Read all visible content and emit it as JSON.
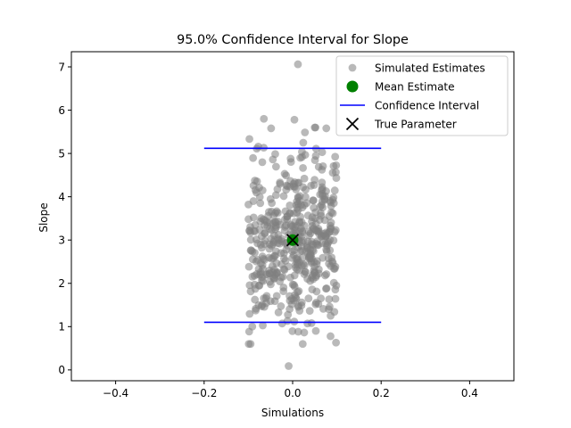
{
  "chart_data": {
    "type": "scatter",
    "title": "95.0% Confidence Interval for Slope",
    "xlabel": "Simulations",
    "ylabel": "Slope",
    "xlim": [
      -0.5,
      0.5
    ],
    "ylim": [
      -0.25,
      7.35
    ],
    "grid": false,
    "legend_position": "top-right",
    "x_ticks": [
      -0.4,
      -0.2,
      0.0,
      0.2,
      0.4
    ],
    "x_tick_labels": [
      "−0.4",
      "−0.2",
      "0.0",
      "0.2",
      "0.4"
    ],
    "y_ticks": [
      0,
      1,
      2,
      3,
      4,
      5,
      6,
      7
    ],
    "y_tick_labels": [
      "0",
      "1",
      "2",
      "3",
      "4",
      "5",
      "6",
      "7"
    ],
    "legend": [
      {
        "label": "Simulated Estimates",
        "marker": "circle",
        "color": "#808080"
      },
      {
        "label": "Mean Estimate",
        "marker": "big-circle",
        "color": "#008000"
      },
      {
        "label": "Confidence Interval",
        "marker": "line",
        "color": "#0000ff"
      },
      {
        "label": "True Parameter",
        "marker": "x",
        "color": "#000000"
      }
    ],
    "simulated_estimates": {
      "name": "Simulated Estimates",
      "color": "#808080",
      "count": 500,
      "x_spread": [
        -0.1,
        0.1
      ],
      "distribution": "normal",
      "mean": 3.0,
      "sd": 1.0,
      "seed": 7,
      "notable_points": [
        {
          "x": 0.012,
          "y": 7.06
        },
        {
          "x": -0.009,
          "y": 0.09
        },
        {
          "x": -0.065,
          "y": 5.8
        },
        {
          "x": 0.004,
          "y": 5.78
        },
        {
          "x": -0.095,
          "y": 0.6
        },
        {
          "x": 0.098,
          "y": 0.63
        }
      ]
    },
    "mean_estimate": {
      "name": "Mean Estimate",
      "x": 0.0,
      "y": 3.0,
      "color": "#008000"
    },
    "confidence_interval": {
      "name": "Confidence Interval",
      "lower": 1.1,
      "upper": 5.12,
      "x_range": [
        -0.2,
        0.2
      ],
      "color": "#0000ff"
    },
    "true_parameter": {
      "name": "True Parameter",
      "x": 0.0,
      "y": 3.0,
      "color": "#000000"
    }
  }
}
